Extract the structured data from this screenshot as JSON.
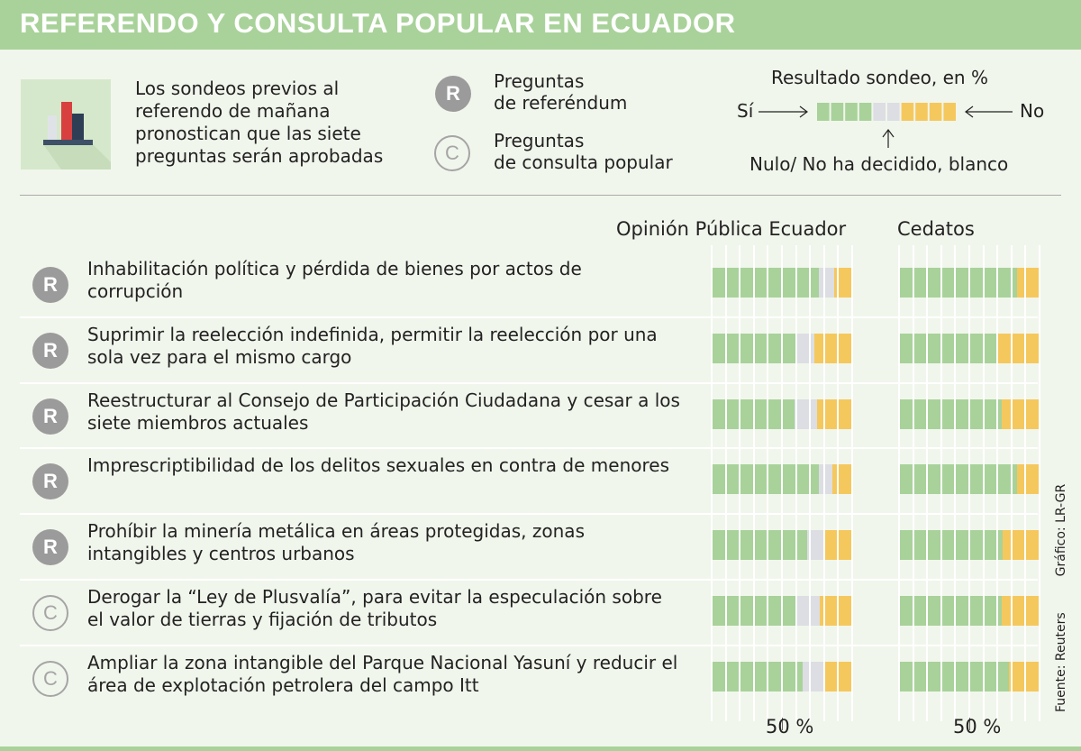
{
  "title": "REFERENDO Y CONSULTA POPULAR EN ECUADOR",
  "intro": "Los sondeos previos al referendo de mañana pronostican que las siete preguntas serán aprobadas",
  "legend": {
    "r_letter": "R",
    "r_label_1": "Preguntas",
    "r_label_2": "de referéndum",
    "c_letter": "C",
    "c_label_1": "Preguntas",
    "c_label_2": "de consulta popular",
    "result_title": "Resultado sondeo, en %",
    "si": "Sí",
    "no": "No",
    "nulo": "Nulo/ No ha decidido, blanco"
  },
  "source": "Fuente: Reuters",
  "credit": "Gráfico: LR-GR",
  "colors": {
    "si": "#a8d29a",
    "nulo": "#dcdee3",
    "no": "#f5c85e",
    "header": "#a9d29a"
  },
  "chart_data": {
    "type": "bar",
    "stacked": true,
    "orientation": "horizontal",
    "segments": [
      "Sí",
      "Nulo/ No ha decidido, blanco",
      "No"
    ],
    "xlim": [
      0,
      100
    ],
    "tick_label": "50 %",
    "pollsters": [
      "Opinión Pública Ecuador",
      "Cedatos"
    ],
    "questions": [
      {
        "type": "R",
        "text": "Inhabilitación política y pérdida de bienes por actos de corrupción",
        "ope": [
          76,
          11,
          13
        ],
        "cedatos": [
          84,
          0,
          16
        ]
      },
      {
        "type": "R",
        "text": "Suprimir la reelección indefinida, permitir la reelección por una sola vez para el mismo cargo",
        "ope": [
          60,
          13,
          27
        ],
        "cedatos": [
          70,
          0,
          30
        ]
      },
      {
        "type": "R",
        "text": "Reestructurar al Consejo de Participación Ciudadana y cesar a los siete miembros actuales",
        "ope": [
          59,
          16,
          25
        ],
        "cedatos": [
          73,
          0,
          27
        ]
      },
      {
        "type": "R",
        "text": "Imprescriptibilidad de los delitos sexuales en contra de menores",
        "ope": [
          76,
          10,
          14
        ],
        "cedatos": [
          84,
          0,
          16
        ]
      },
      {
        "type": "R",
        "text": "Prohíbir la minería metálica en áreas protegidas, zonas intangibles y centros urbanos",
        "ope": [
          68,
          13,
          19
        ],
        "cedatos": [
          74,
          0,
          26
        ]
      },
      {
        "type": "C",
        "text": "Derogar la “Ley de Plusvalía”, para evitar la especulación sobre el valor de tierras y fijación de tributos",
        "ope": [
          60,
          17,
          23
        ],
        "cedatos": [
          73,
          0,
          27
        ]
      },
      {
        "type": "C",
        "text": "Ampliar la zona intangible del Parque Nacional Yasuní y reducir el área de explotación petrolera del campo Itt",
        "ope": [
          65,
          16,
          19
        ],
        "cedatos": [
          78,
          0,
          22
        ]
      }
    ]
  }
}
